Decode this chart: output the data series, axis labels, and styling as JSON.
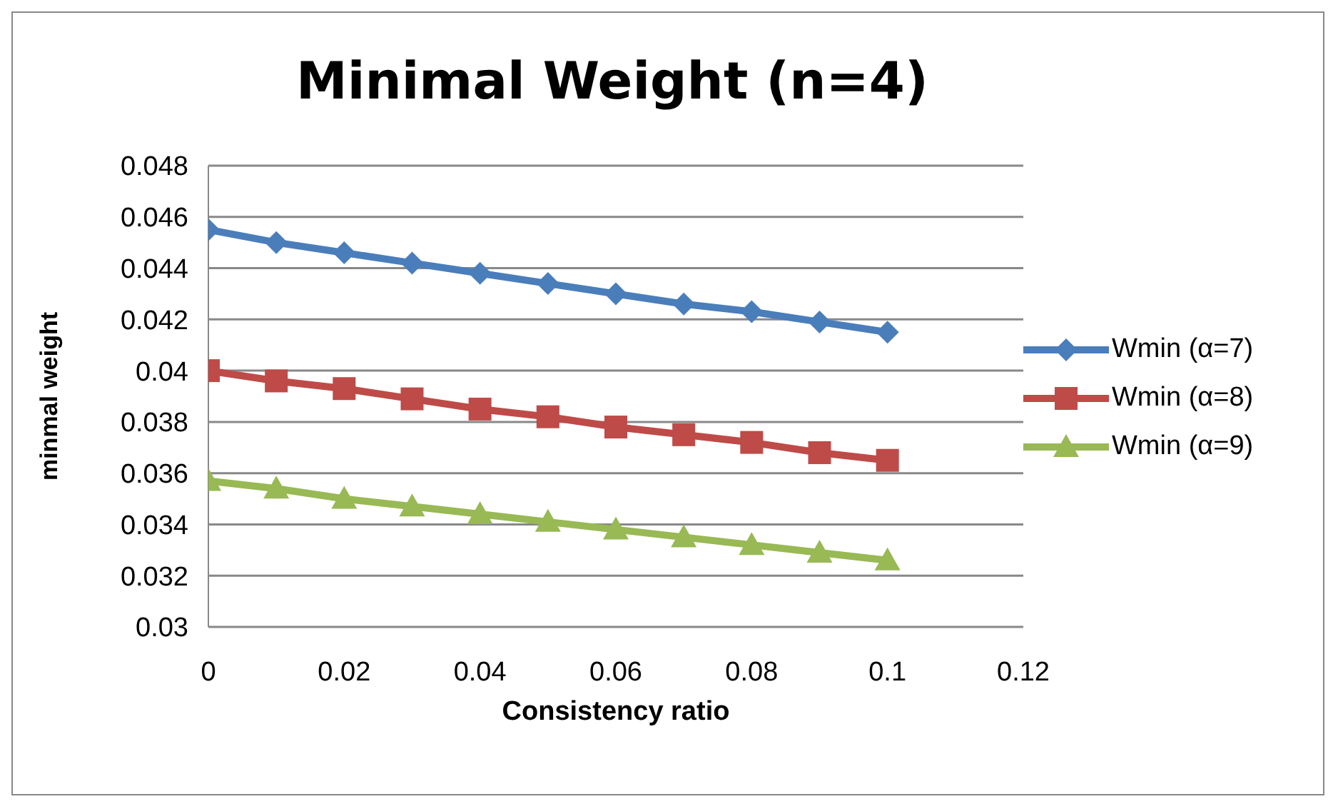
{
  "chart_data": {
    "type": "line",
    "title": "Minimal Weight (n=4)",
    "xlabel": "Consistency ratio",
    "ylabel": "minmal weight",
    "x": [
      0,
      0.01,
      0.02,
      0.03,
      0.04,
      0.05,
      0.06,
      0.07,
      0.08,
      0.09,
      0.1
    ],
    "series": [
      {
        "name": "Wmin (α=7)",
        "color": "#4a7ebb",
        "marker": "diamond",
        "values": [
          0.0455,
          0.045,
          0.0446,
          0.0442,
          0.0438,
          0.0434,
          0.043,
          0.0426,
          0.0423,
          0.0419,
          0.0415
        ]
      },
      {
        "name": "Wmin (α=8)",
        "color": "#be4b48",
        "marker": "square",
        "values": [
          0.04,
          0.0396,
          0.0393,
          0.0389,
          0.0385,
          0.0382,
          0.0378,
          0.0375,
          0.0372,
          0.0368,
          0.0365
        ]
      },
      {
        "name": "Wmin (α=9)",
        "color": "#98b954",
        "marker": "triangle",
        "values": [
          0.0357,
          0.0354,
          0.035,
          0.0347,
          0.0344,
          0.0341,
          0.0338,
          0.0335,
          0.0332,
          0.0329,
          0.0326
        ]
      }
    ],
    "xlim": [
      0,
      0.12
    ],
    "xticks": [
      0,
      0.02,
      0.04,
      0.06,
      0.08,
      0.1,
      0.12
    ],
    "ylim": [
      0.03,
      0.048
    ],
    "yticks": [
      0.03,
      0.032,
      0.034,
      0.036,
      0.038,
      0.04,
      0.042,
      0.044,
      0.046,
      0.048
    ],
    "grid": "y",
    "legend": "right"
  }
}
